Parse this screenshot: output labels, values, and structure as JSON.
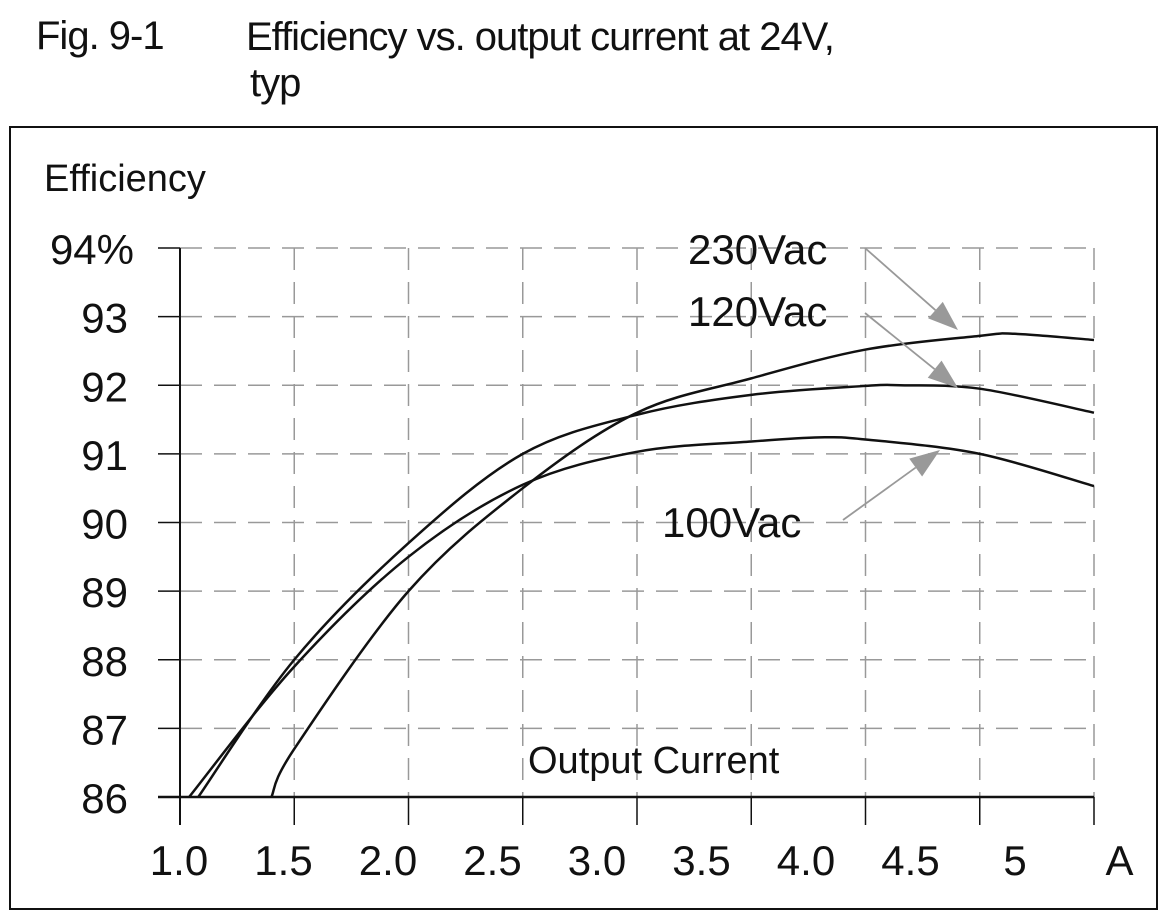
{
  "figure": {
    "number": "Fig. 9-1",
    "title_line1": "Efficiency vs. output current at 24V,",
    "title_line2": "typ"
  },
  "chart_data": {
    "type": "line",
    "title": "Efficiency vs. output current at 24V, typ",
    "xlabel": "Output Current",
    "ylabel": "Efficiency",
    "xlim": [
      1.0,
      5.0
    ],
    "ylim": [
      86,
      94
    ],
    "x_ticks": [
      "1.0",
      "1.5",
      "2.0",
      "2.5",
      "3.0",
      "3.5",
      "4.0",
      "4.5",
      "5"
    ],
    "x_unit": "A",
    "y_ticks": [
      "94%",
      "93",
      "92",
      "91",
      "90",
      "89",
      "88",
      "87",
      "86"
    ],
    "grid": true,
    "legend": "inline labels with arrows",
    "colors": {
      "line": "#111111",
      "grid": "#999999",
      "arrow": "#999999"
    },
    "series": [
      {
        "name": "230Vac",
        "x": [
          1.4,
          1.5,
          2.0,
          2.5,
          3.0,
          3.5,
          4.0,
          4.5,
          4.65,
          5.0
        ],
        "y": [
          86.0,
          86.7,
          89.0,
          90.5,
          91.6,
          92.1,
          92.52,
          92.72,
          92.75,
          92.66
        ]
      },
      {
        "name": "120Vac",
        "x": [
          1.08,
          1.5,
          2.0,
          2.5,
          3.0,
          3.5,
          4.0,
          4.15,
          4.5,
          5.0
        ],
        "y": [
          86.0,
          88.0,
          89.7,
          91.0,
          91.57,
          91.86,
          91.99,
          92.0,
          91.95,
          91.6
        ]
      },
      {
        "name": "100Vac",
        "x": [
          1.04,
          1.5,
          2.0,
          2.5,
          3.0,
          3.5,
          3.8,
          4.0,
          4.5,
          5.0
        ],
        "y": [
          86.0,
          87.9,
          89.5,
          90.55,
          91.03,
          91.18,
          91.24,
          91.21,
          91.0,
          90.53
        ]
      }
    ]
  }
}
